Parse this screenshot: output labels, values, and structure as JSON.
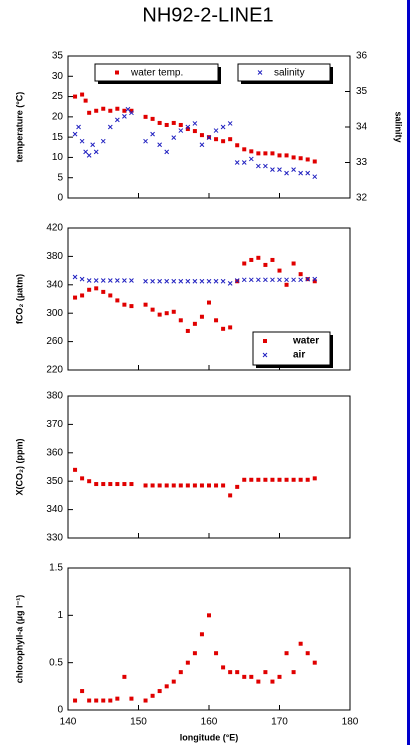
{
  "chart_data": [
    {
      "type": "scatter",
      "title": "NH92-2-LINE1",
      "ylabel": "temperature (°C)",
      "y2label": "salinity",
      "xlim": [
        140,
        180
      ],
      "ylim": [
        0,
        35
      ],
      "yticks": [
        0,
        5,
        10,
        15,
        20,
        25,
        30,
        35
      ],
      "y2lim": [
        32,
        36
      ],
      "y2ticks": [
        32,
        33,
        34,
        35,
        36
      ],
      "legend": "top",
      "series": [
        {
          "name": "water temp.",
          "color": "#e00000",
          "marker": "square",
          "x": [
            141,
            142,
            142.5,
            143,
            144,
            145,
            146,
            147,
            148,
            149,
            151,
            152,
            153,
            154,
            155,
            156,
            157,
            158,
            159,
            160,
            161,
            162,
            163,
            164,
            165,
            166,
            167,
            168,
            169,
            170,
            171,
            172,
            173,
            174,
            175
          ],
          "values": [
            25,
            25.5,
            24,
            21,
            21.5,
            22,
            21.5,
            22,
            21.5,
            21.5,
            20,
            19.5,
            18.5,
            18,
            18.5,
            18,
            17,
            16.5,
            15.5,
            15,
            14.5,
            14,
            14.5,
            13,
            12,
            11.5,
            11,
            11,
            11,
            10.5,
            10.5,
            10,
            9.8,
            9.5,
            9
          ]
        },
        {
          "name": "salinity",
          "color": "#2020c0",
          "marker": "x",
          "axis": "y2",
          "x": [
            141,
            141.5,
            142,
            142.5,
            143,
            143.5,
            144,
            145,
            146,
            147,
            148,
            148.5,
            149,
            151,
            152,
            153,
            154,
            155,
            156,
            157,
            158,
            159,
            160,
            161,
            162,
            163,
            164,
            165,
            166,
            167,
            168,
            169,
            170,
            171,
            172,
            173,
            174,
            175
          ],
          "values": [
            33.8,
            34.0,
            33.6,
            33.3,
            33.2,
            33.5,
            33.3,
            33.6,
            34.0,
            34.2,
            34.3,
            34.5,
            34.4,
            33.6,
            33.8,
            33.5,
            33.3,
            33.7,
            33.9,
            34.0,
            34.1,
            33.5,
            33.7,
            33.9,
            34.0,
            34.1,
            33.0,
            33.0,
            33.1,
            32.9,
            32.9,
            32.8,
            32.8,
            32.7,
            32.8,
            32.7,
            32.7,
            32.6
          ]
        }
      ]
    },
    {
      "type": "scatter",
      "ylabel": "fCO₂ (µatm)",
      "xlim": [
        140,
        180
      ],
      "ylim": [
        220,
        420
      ],
      "yticks": [
        220,
        260,
        300,
        340,
        380,
        420
      ],
      "legend": "lower right",
      "series": [
        {
          "name": "water",
          "color": "#e00000",
          "marker": "square",
          "x": [
            141,
            142,
            143,
            144,
            145,
            146,
            147,
            148,
            149,
            151,
            152,
            153,
            154,
            155,
            156,
            157,
            158,
            159,
            160,
            161,
            162,
            163,
            164,
            165,
            166,
            167,
            168,
            169,
            170,
            171,
            172,
            173,
            174,
            175
          ],
          "values": [
            322,
            325,
            333,
            335,
            330,
            325,
            318,
            312,
            310,
            312,
            305,
            298,
            300,
            302,
            290,
            275,
            285,
            295,
            315,
            290,
            278,
            280,
            345,
            370,
            375,
            378,
            368,
            375,
            360,
            340,
            370,
            355,
            348,
            345
          ]
        },
        {
          "name": "air",
          "color": "#2020c0",
          "marker": "x",
          "x": [
            141,
            142,
            143,
            144,
            145,
            146,
            147,
            148,
            149,
            151,
            152,
            153,
            154,
            155,
            156,
            157,
            158,
            159,
            160,
            161,
            162,
            163,
            164,
            165,
            166,
            167,
            168,
            169,
            170,
            171,
            172,
            173,
            174,
            175
          ],
          "values": [
            351,
            348,
            346,
            346,
            346,
            346,
            346,
            346,
            346,
            345,
            345,
            345,
            345,
            345,
            345,
            345,
            345,
            345,
            345,
            345,
            345,
            342,
            346,
            347,
            347,
            347,
            347,
            347,
            347,
            347,
            347,
            347,
            348,
            348
          ]
        }
      ]
    },
    {
      "type": "scatter",
      "ylabel": "X(CO₂) (ppm)",
      "xlim": [
        140,
        180
      ],
      "ylim": [
        330,
        380
      ],
      "yticks": [
        330,
        340,
        350,
        360,
        370,
        380
      ],
      "series": [
        {
          "color": "#e00000",
          "marker": "square",
          "x": [
            141,
            142,
            143,
            144,
            145,
            146,
            147,
            148,
            149,
            151,
            152,
            153,
            154,
            155,
            156,
            157,
            158,
            159,
            160,
            161,
            162,
            163,
            164,
            165,
            166,
            167,
            168,
            169,
            170,
            171,
            172,
            173,
            174,
            175
          ],
          "values": [
            354,
            351,
            350,
            349,
            349,
            349,
            349,
            349,
            349,
            348.5,
            348.5,
            348.5,
            348.5,
            348.5,
            348.5,
            348.5,
            348.5,
            348.5,
            348.5,
            348.5,
            348.5,
            345,
            348,
            350.5,
            350.5,
            350.5,
            350.5,
            350.5,
            350.5,
            350.5,
            350.5,
            350.5,
            350.5,
            351
          ]
        }
      ]
    },
    {
      "type": "scatter",
      "ylabel": "chlorophyll-a (µg l⁻¹)",
      "xlabel": "longitude (°E)",
      "xlim": [
        140,
        180
      ],
      "xticks": [
        140,
        150,
        160,
        170,
        180
      ],
      "ylim": [
        0,
        1.5
      ],
      "yticks": [
        0,
        0.5,
        1,
        1.5
      ],
      "series": [
        {
          "color": "#e00000",
          "marker": "square",
          "x": [
            141,
            142,
            143,
            144,
            145,
            146,
            147,
            148,
            149,
            151,
            152,
            153,
            154,
            155,
            156,
            157,
            158,
            159,
            160,
            161,
            162,
            163,
            164,
            165,
            166,
            167,
            168,
            169,
            170,
            171,
            172,
            173,
            174,
            175
          ],
          "values": [
            0.1,
            0.2,
            0.1,
            0.1,
            0.1,
            0.1,
            0.12,
            0.35,
            0.12,
            0.1,
            0.15,
            0.2,
            0.25,
            0.3,
            0.4,
            0.5,
            0.6,
            0.8,
            1.0,
            0.6,
            0.45,
            0.4,
            0.4,
            0.35,
            0.35,
            0.3,
            0.4,
            0.3,
            0.35,
            0.6,
            0.4,
            0.7,
            0.6,
            0.5
          ]
        }
      ]
    }
  ]
}
